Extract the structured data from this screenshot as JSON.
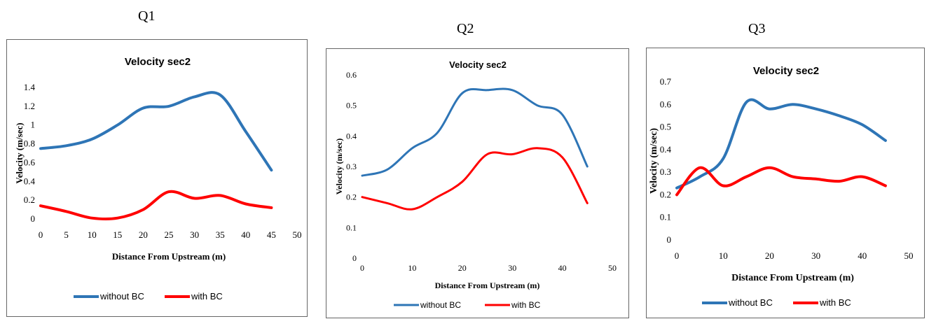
{
  "panels": [
    {
      "label": "Q1"
    },
    {
      "label": "Q2"
    },
    {
      "label": "Q3"
    }
  ],
  "colors": {
    "without": "#2E75B6",
    "with": "#FF0000"
  },
  "chart_data": [
    {
      "type": "line",
      "title": "Velocity sec2",
      "xlabel": "Distance From Upstream (m)",
      "ylabel": "Velocity (m/sec)",
      "xlim": [
        0,
        50
      ],
      "ylim": [
        0,
        1.4
      ],
      "xticks": [
        0,
        5,
        10,
        15,
        20,
        25,
        30,
        35,
        40,
        45,
        50
      ],
      "yticks": [
        0,
        0.2,
        0.4,
        0.6,
        0.8,
        1,
        1.2,
        1.4
      ],
      "ytick_labels": [
        "0",
        "0.2",
        "0.4",
        "0.6",
        "0.8",
        "1",
        "1.2",
        "1.4"
      ],
      "grid": false,
      "legend": "bottom",
      "series": [
        {
          "name": "without BC",
          "color": "#2E75B6",
          "x": [
            0,
            5,
            10,
            15,
            20,
            25,
            30,
            35,
            40,
            45
          ],
          "y": [
            0.75,
            0.78,
            0.85,
            1.0,
            1.18,
            1.2,
            1.3,
            1.32,
            0.93,
            0.52
          ]
        },
        {
          "name": "with BC",
          "color": "#FF0000",
          "x": [
            0,
            5,
            10,
            15,
            20,
            25,
            30,
            35,
            40,
            45
          ],
          "y": [
            0.14,
            0.08,
            0.01,
            0.01,
            0.1,
            0.29,
            0.22,
            0.25,
            0.16,
            0.12
          ]
        }
      ]
    },
    {
      "type": "line",
      "title": "Velocity sec2",
      "xlabel": "Distance From Upstream (m)",
      "ylabel": "Velocity (m/sec)",
      "xlim": [
        0,
        50
      ],
      "ylim": [
        0,
        0.6
      ],
      "xticks": [
        0,
        10,
        20,
        30,
        40,
        50
      ],
      "yticks": [
        0,
        0.1,
        0.2,
        0.3,
        0.4,
        0.5,
        0.6
      ],
      "ytick_labels": [
        "0",
        "0.1",
        "0.2",
        "0.3",
        "0.4",
        "0.5",
        "0.6"
      ],
      "grid": false,
      "legend": "bottom",
      "series": [
        {
          "name": "without BC",
          "color": "#2E75B6",
          "x": [
            0,
            5,
            10,
            15,
            20,
            25,
            30,
            35,
            40,
            45
          ],
          "y": [
            0.27,
            0.29,
            0.36,
            0.41,
            0.54,
            0.55,
            0.55,
            0.5,
            0.47,
            0.3
          ]
        },
        {
          "name": "with BC",
          "color": "#FF0000",
          "x": [
            0,
            5,
            10,
            15,
            20,
            25,
            30,
            35,
            40,
            45
          ],
          "y": [
            0.2,
            0.18,
            0.16,
            0.2,
            0.25,
            0.34,
            0.34,
            0.36,
            0.33,
            0.18
          ]
        }
      ]
    },
    {
      "type": "line",
      "title": "Velocity sec2",
      "xlabel": "Distance From Upstream (m)",
      "ylabel": "Velocity (m/sec)",
      "xlim": [
        0,
        50
      ],
      "ylim": [
        0,
        0.7
      ],
      "xticks": [
        0,
        10,
        20,
        30,
        40,
        50
      ],
      "yticks": [
        0,
        0.1,
        0.2,
        0.3,
        0.4,
        0.5,
        0.6,
        0.7
      ],
      "ytick_labels": [
        "0",
        "0.1",
        "0.2",
        "0.3",
        "0.4",
        "0.5",
        "0.6",
        "0.7"
      ],
      "grid": false,
      "legend": "bottom",
      "series": [
        {
          "name": "without BC",
          "color": "#2E75B6",
          "x": [
            0,
            5,
            10,
            15,
            20,
            25,
            30,
            35,
            40,
            45
          ],
          "y": [
            0.23,
            0.28,
            0.36,
            0.61,
            0.58,
            0.6,
            0.58,
            0.55,
            0.51,
            0.44
          ]
        },
        {
          "name": "with BC",
          "color": "#FF0000",
          "x": [
            0,
            5,
            10,
            15,
            20,
            25,
            30,
            35,
            40,
            45
          ],
          "y": [
            0.2,
            0.32,
            0.24,
            0.28,
            0.32,
            0.28,
            0.27,
            0.26,
            0.28,
            0.24
          ]
        }
      ]
    }
  ]
}
